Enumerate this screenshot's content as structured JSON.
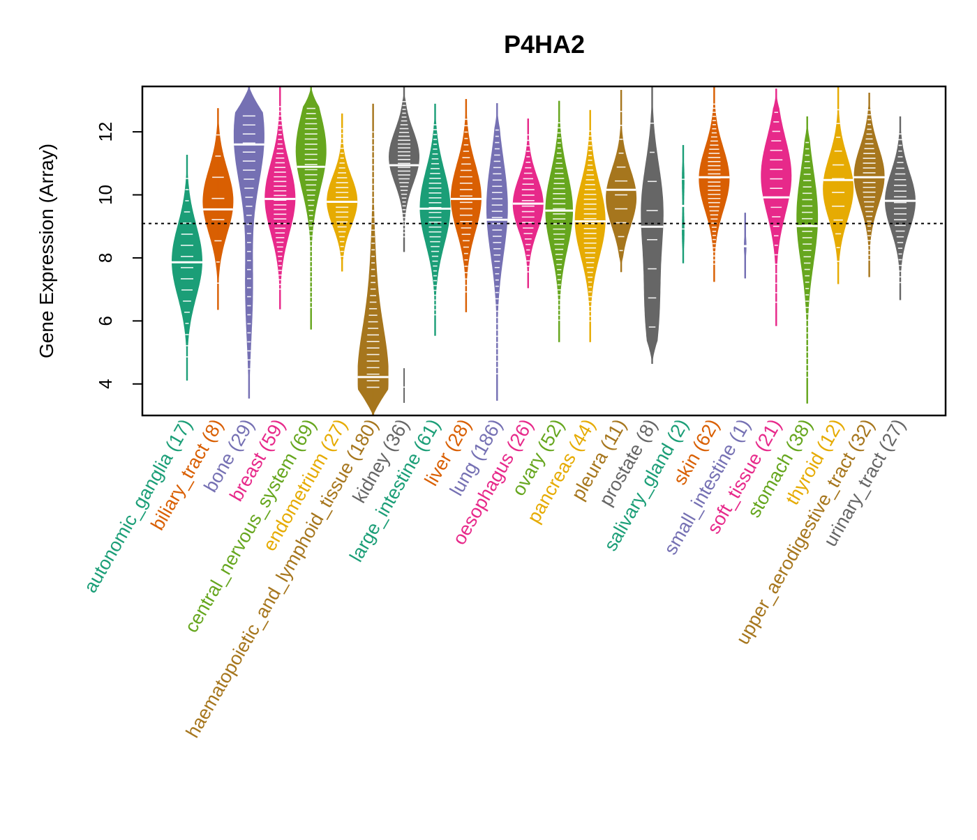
{
  "chart_data": {
    "type": "violin",
    "title": "P4HA2",
    "xlabel": "",
    "ylabel": "Gene Expression (Array)",
    "ylim": [
      3.0,
      13.44
    ],
    "yticks": [
      4,
      6,
      8,
      10,
      12
    ],
    "reference_line": {
      "value": 9.09,
      "style": "dotted"
    },
    "grid": false,
    "legend": "none",
    "categories": [
      {
        "name": "autonomic_ganglia",
        "n": 17,
        "label": "autonomic_ganglia (17)",
        "color": "#1B9E77",
        "min": 4.11,
        "max": 11.27,
        "median": 7.86,
        "modes": [
          [
            7.9,
            1.0
          ]
        ]
      },
      {
        "name": "biliary_tract",
        "n": 8,
        "label": "biliary_tract (8)",
        "color": "#D95F02",
        "min": 6.35,
        "max": 12.75,
        "median": 9.54,
        "modes": [
          [
            9.8,
            1.0
          ]
        ]
      },
      {
        "name": "bone",
        "n": 29,
        "label": "bone (29)",
        "color": "#7570B3",
        "min": 3.54,
        "max": 13.44,
        "median": 11.6,
        "modes": [
          [
            11.9,
            1.0
          ],
          [
            7.0,
            0.25
          ]
        ]
      },
      {
        "name": "breast",
        "n": 59,
        "label": "breast (59)",
        "color": "#E7298A",
        "min": 6.37,
        "max": 13.44,
        "median": 9.87,
        "modes": [
          [
            9.9,
            1.0
          ]
        ]
      },
      {
        "name": "central_nervous_system",
        "n": 69,
        "label": "central_nervous_system (69)",
        "color": "#66A61E",
        "min": 5.73,
        "max": 13.44,
        "median": 10.89,
        "modes": [
          [
            11.4,
            1.0
          ]
        ]
      },
      {
        "name": "endometrium",
        "n": 27,
        "label": "endometrium (27)",
        "color": "#E6AB02",
        "min": 7.57,
        "max": 12.58,
        "median": 9.78,
        "modes": [
          [
            9.8,
            1.0
          ]
        ]
      },
      {
        "name": "haematopoietic_and_lymphoid_tissue",
        "n": 180,
        "label": "haematopoietic_and_lymphoid_tissue (180)",
        "color": "#A6761D",
        "min": 3.0,
        "max": 12.89,
        "median": 4.22,
        "modes": [
          [
            4.2,
            1.0
          ],
          [
            7.5,
            0.15
          ]
        ]
      },
      {
        "name": "kidney",
        "n": 36,
        "label": "kidney (36)",
        "color": "#666666",
        "min": 8.19,
        "max": 13.44,
        "median": 10.94,
        "modes": [
          [
            11.2,
            1.0
          ]
        ],
        "outlier_range": [
          3.4,
          4.5
        ],
        "outlier": 3.9
      },
      {
        "name": "large_intestine",
        "n": 61,
        "label": "large_intestine (61)",
        "color": "#1B9E77",
        "min": 5.53,
        "max": 12.89,
        "median": 9.56,
        "modes": [
          [
            9.6,
            1.0
          ]
        ]
      },
      {
        "name": "liver",
        "n": 28,
        "label": "liver (28)",
        "color": "#D95F02",
        "min": 6.28,
        "max": 13.04,
        "median": 9.87,
        "modes": [
          [
            9.9,
            1.0
          ]
        ]
      },
      {
        "name": "lung",
        "n": 186,
        "label": "lung (186)",
        "color": "#7570B3",
        "min": 3.47,
        "max": 12.91,
        "median": 9.21,
        "modes": [
          [
            9.6,
            0.7
          ]
        ]
      },
      {
        "name": "oesophagus",
        "n": 26,
        "label": "oesophagus (26)",
        "color": "#E7298A",
        "min": 7.04,
        "max": 12.42,
        "median": 9.72,
        "modes": [
          [
            9.7,
            1.0
          ]
        ]
      },
      {
        "name": "ovary",
        "n": 52,
        "label": "ovary (52)",
        "color": "#66A61E",
        "min": 5.33,
        "max": 12.98,
        "median": 9.5,
        "modes": [
          [
            9.5,
            0.9
          ]
        ]
      },
      {
        "name": "pancreas",
        "n": 44,
        "label": "pancreas (44)",
        "color": "#E6AB02",
        "min": 5.33,
        "max": 12.69,
        "median": 9.16,
        "modes": [
          [
            9.2,
            1.0
          ]
        ]
      },
      {
        "name": "pleura",
        "n": 11,
        "label": "pleura (11)",
        "color": "#A6761D",
        "min": 7.55,
        "max": 13.33,
        "median": 10.16,
        "modes": [
          [
            9.9,
            1.0
          ]
        ]
      },
      {
        "name": "prostate",
        "n": 8,
        "label": "prostate (8)",
        "color": "#666666",
        "min": 4.64,
        "max": 13.44,
        "median": 8.99,
        "modes": [
          [
            9.6,
            0.7
          ],
          [
            6.4,
            0.45
          ]
        ]
      },
      {
        "name": "salivary_gland",
        "n": 2,
        "label": "salivary_gland (2)",
        "color": "#1B9E77",
        "min": 7.83,
        "max": 11.58,
        "median": 9.65,
        "modes": [
          [
            10.5,
            0.3
          ],
          [
            8.8,
            0.3
          ]
        ]
      },
      {
        "name": "skin",
        "n": 62,
        "label": "skin (62)",
        "color": "#D95F02",
        "min": 7.24,
        "max": 13.44,
        "median": 10.56,
        "modes": [
          [
            10.5,
            1.0
          ]
        ]
      },
      {
        "name": "small_intestine",
        "n": 1,
        "label": "small_intestine (1)",
        "color": "#7570B3",
        "min": 7.35,
        "max": 9.43,
        "median": 8.37,
        "modes": [
          [
            8.37,
            0.3
          ]
        ]
      },
      {
        "name": "soft_tissue",
        "n": 21,
        "label": "soft_tissue (21)",
        "color": "#E7298A",
        "min": 5.84,
        "max": 13.37,
        "median": 9.92,
        "modes": [
          [
            10.6,
            1.0
          ]
        ]
      },
      {
        "name": "stomach",
        "n": 38,
        "label": "stomach (38)",
        "color": "#66A61E",
        "min": 3.38,
        "max": 12.49,
        "median": 9.01,
        "modes": [
          [
            9.3,
            0.7
          ]
        ]
      },
      {
        "name": "thyroid",
        "n": 12,
        "label": "thyroid (12)",
        "color": "#E6AB02",
        "min": 7.17,
        "max": 13.42,
        "median": 10.47,
        "modes": [
          [
            10.2,
            1.0
          ]
        ]
      },
      {
        "name": "upper_aerodigestive_tract",
        "n": 32,
        "label": "upper_aerodigestive_tract (32)",
        "color": "#A6761D",
        "min": 7.39,
        "max": 13.24,
        "median": 10.56,
        "modes": [
          [
            10.6,
            1.0
          ]
        ]
      },
      {
        "name": "urinary_tract",
        "n": 27,
        "label": "urinary_tract (27)",
        "color": "#666666",
        "min": 6.66,
        "max": 12.49,
        "median": 9.81,
        "modes": [
          [
            9.8,
            1.0
          ]
        ]
      }
    ]
  }
}
